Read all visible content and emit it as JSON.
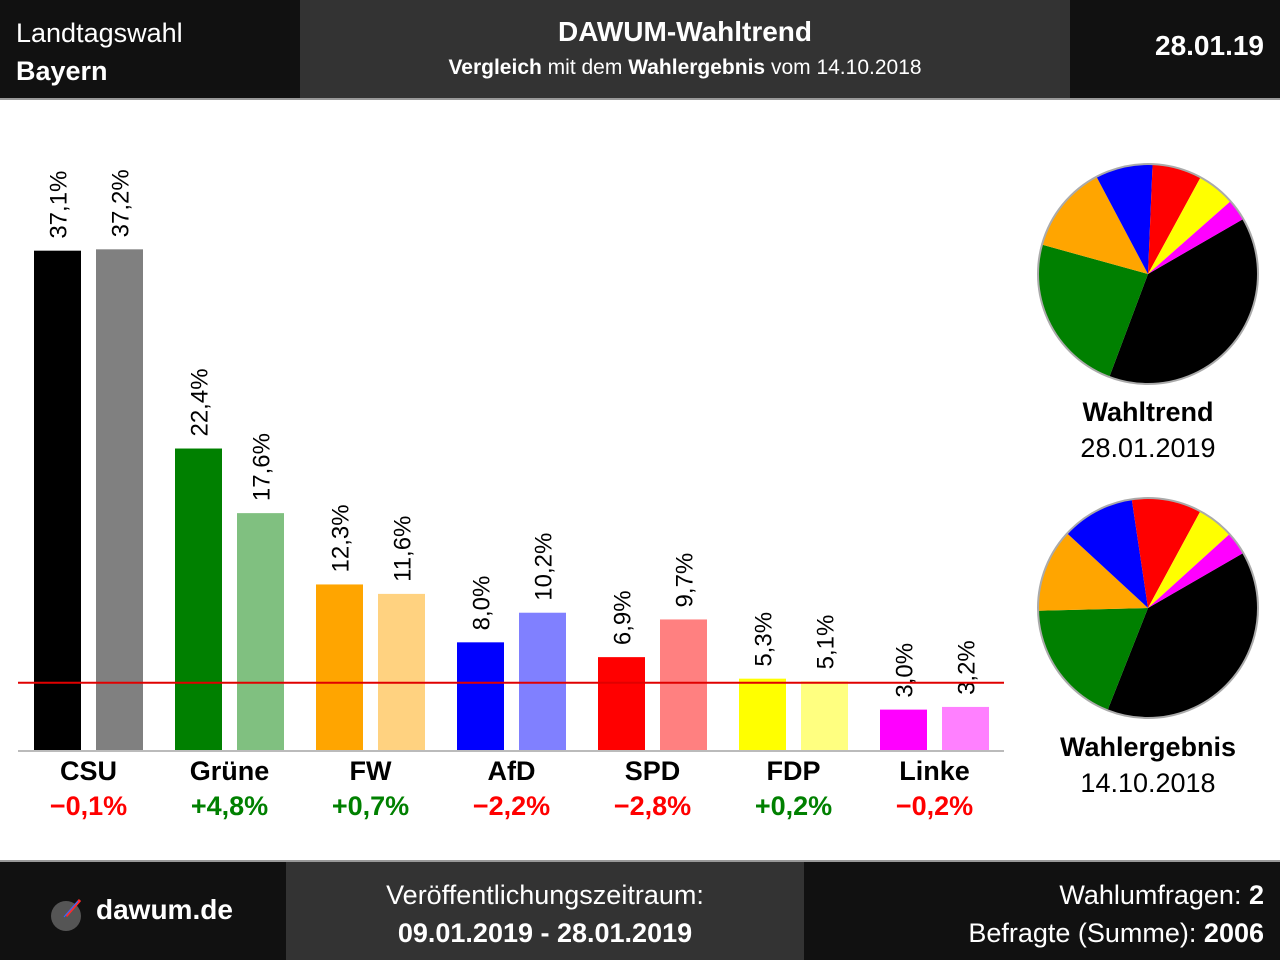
{
  "header": {
    "left_line1": "Landtagswahl",
    "left_line2": "Bayern",
    "title": "DAWUM-Wahltrend",
    "subtitle_b1": "Vergleich",
    "subtitle_t1": " mit dem ",
    "subtitle_b2": "Wahlergebnis",
    "subtitle_t2": " vom 14.10.2018",
    "date": "28.01.19"
  },
  "footer": {
    "brand": "dawum.de",
    "period_label": "Veröffentlichungszeitraum:",
    "period": "09.01.2019 - 28.01.2019",
    "polls_label": "Wahlumfragen: ",
    "polls_value": "2",
    "respondents_label": "Befragte (Summe): ",
    "respondents_value": "2006"
  },
  "pies": {
    "top_title": "Wahltrend",
    "top_date": "28.01.2019",
    "bottom_title": "Wahlergebnis",
    "bottom_date": "14.10.2018"
  },
  "chart_data": {
    "type": "bar",
    "categories": [
      "CSU",
      "Grüne",
      "FW",
      "AfD",
      "SPD",
      "FDP",
      "Linke"
    ],
    "series": [
      {
        "values": [
          37.1,
          22.4,
          12.3,
          8.0,
          6.9,
          5.3,
          3.0
        ],
        "labels": [
          "37,1%",
          "22,4%",
          "12,3%",
          "8,0%",
          "6,9%",
          "5,3%",
          "3,0%"
        ]
      },
      {
        "values": [
          37.2,
          17.6,
          11.6,
          10.2,
          9.7,
          5.1,
          3.2
        ],
        "labels": [
          "37,2%",
          "17,6%",
          "11,6%",
          "10,2%",
          "9,7%",
          "5,1%",
          "3,2%"
        ]
      }
    ],
    "colors": [
      "#000000",
      "#008000",
      "#ffa500",
      "#0000ff",
      "#ff0000",
      "#ffff00",
      "#ff00ff"
    ],
    "colors_light": [
      "#808080",
      "#80c080",
      "#ffd280",
      "#8080ff",
      "#ff8080",
      "#ffff80",
      "#ff80ff"
    ],
    "changes": [
      "−0,1%",
      "+4,8%",
      "+0,7%",
      "−2,2%",
      "−2,8%",
      "+0,2%",
      "−0,2%"
    ],
    "change_colors": [
      "#ff0000",
      "#008000",
      "#008000",
      "#ff0000",
      "#ff0000",
      "#008000",
      "#ff0000"
    ],
    "threshold": 5,
    "threshold_color": "#e00000",
    "ylim": [
      0,
      40
    ]
  }
}
